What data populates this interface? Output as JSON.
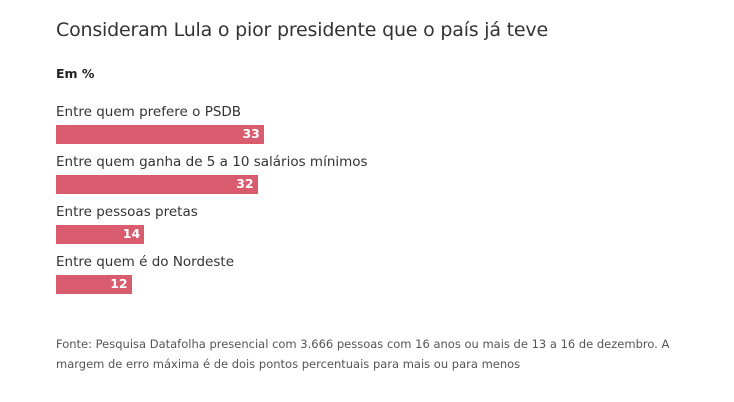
{
  "title": "Consideram Lula o pior presidente que o país já teve",
  "subtitle": "Em %",
  "source": "Fonte: Pesquisa Datafolha presencial com 3.666 pessoas com 16 anos ou mais de 13 a 16 de dezembro. A margem de erro máxima é de dois pontos percentuais para mais ou para menos",
  "colors": {
    "bar": "#d85c6e",
    "value_text": "#ffffff"
  },
  "chart_data": {
    "type": "bar",
    "orientation": "horizontal",
    "title": "Consideram Lula o pior presidente que o país já teve",
    "subtitle": "Em %",
    "xlabel": "",
    "ylabel": "",
    "grid": false,
    "xlim": [
      0,
      100
    ],
    "categories": [
      "Entre quem prefere o PSDB",
      "Entre quem ganha de 5 a 10 salários mínimos",
      "Entre pessoas pretas",
      "Entre quem é do Nordeste"
    ],
    "values": [
      33,
      32,
      14,
      12
    ]
  }
}
